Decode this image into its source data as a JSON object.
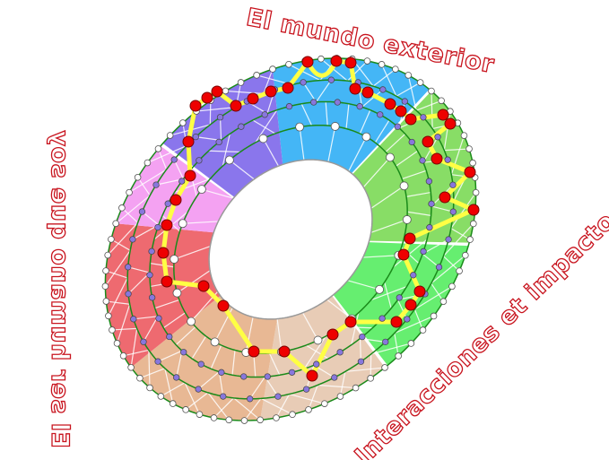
{
  "labels": {
    "top": "El mundo exterior",
    "left": "El ser humano que soy",
    "bottom_right": "Interacciones et impacto"
  },
  "colors": {
    "label_outline": "#c8141e",
    "path": "#ffff44",
    "path_node": "#ee0000",
    "ring_line": "#1a8a1a",
    "inner_node": "#8877dd",
    "sectors": {
      "blue": "#44b6f6",
      "green_dark": "#88dd66",
      "green_light": "#66ee70",
      "tan_light": "#e8ccb6",
      "tan": "#e8b894",
      "red": "#ee6a70",
      "pink": "#f4a2f2",
      "purple": "#8a76ec"
    }
  }
}
